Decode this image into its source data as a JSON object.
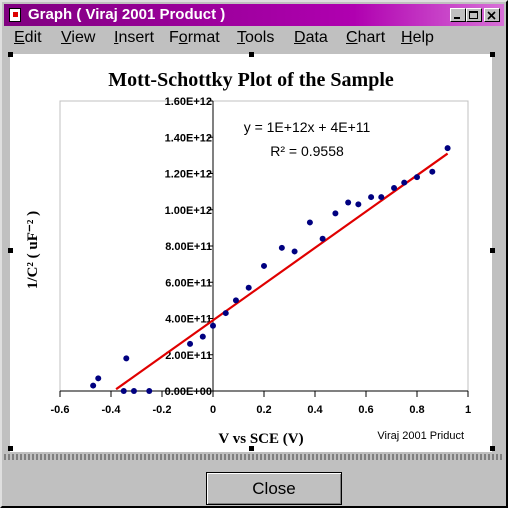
{
  "window": {
    "title": "Graph ( Viraj 2001 Product )",
    "title_gradient": [
      "#800080",
      "#d870d8"
    ]
  },
  "menu": [
    {
      "pre": "",
      "u": "E",
      "post": "dit"
    },
    {
      "pre": "",
      "u": "V",
      "post": "iew"
    },
    {
      "pre": "",
      "u": "I",
      "post": "nsert"
    },
    {
      "pre": "F",
      "u": "o",
      "post": "rmat"
    },
    {
      "pre": "",
      "u": "T",
      "post": "ools"
    },
    {
      "pre": "",
      "u": "D",
      "post": "ata"
    },
    {
      "pre": "",
      "u": "C",
      "post": "hart"
    },
    {
      "pre": "",
      "u": "H",
      "post": "elp"
    }
  ],
  "chart_data": {
    "type": "scatter",
    "title": "Mott-Schottky Plot of the Sample",
    "xlabel": "V vs SCE (V)",
    "ylabel": "1/C² ( uF⁻² )",
    "xlim": [
      -0.6,
      1.0
    ],
    "ylim": [
      0,
      1600000000000.0
    ],
    "x_ticks": [
      "-0.6",
      "-0.4",
      "-0.2",
      "0",
      "0.2",
      "0.4",
      "0.6",
      "0.8",
      "1"
    ],
    "y_ticks": [
      "0.00E+00",
      "2.00E+11",
      "4.00E+11",
      "6.00E+11",
      "8.00E+11",
      "1.00E+12",
      "1.20E+12",
      "1.40E+12",
      "1.60E+12"
    ],
    "equation": "y = 1E+12x + 4E+11",
    "r_squared": "R² = 0.9558",
    "watermark": "Viraj 2001 Priduct",
    "grid": false,
    "series": [
      {
        "marker_color": "#000080",
        "points": [
          [
            -0.47,
            30000000000.0
          ],
          [
            -0.45,
            70000000000.0
          ],
          [
            -0.35,
            0
          ],
          [
            -0.34,
            180000000000.0
          ],
          [
            -0.31,
            0
          ],
          [
            -0.25,
            0
          ],
          [
            -0.09,
            260000000000.0
          ],
          [
            -0.04,
            300000000000.0
          ],
          [
            0.0,
            360000000000.0
          ],
          [
            0.05,
            430000000000.0
          ],
          [
            0.09,
            500000000000.0
          ],
          [
            0.14,
            570000000000.0
          ],
          [
            0.2,
            690000000000.0
          ],
          [
            0.27,
            790000000000.0
          ],
          [
            0.32,
            770000000000.0
          ],
          [
            0.38,
            930000000000.0
          ],
          [
            0.43,
            840000000000.0
          ],
          [
            0.48,
            980000000000.0
          ],
          [
            0.53,
            1040000000000.0
          ],
          [
            0.57,
            1030000000000.0
          ],
          [
            0.62,
            1070000000000.0
          ],
          [
            0.66,
            1070000000000.0
          ],
          [
            0.71,
            1120000000000.0
          ],
          [
            0.75,
            1150000000000.0
          ],
          [
            0.8,
            1180000000000.0
          ],
          [
            0.86,
            1210000000000.0
          ],
          [
            0.92,
            1340000000000.0
          ]
        ]
      }
    ],
    "trendline": {
      "color": "#e00000",
      "slope": 1000000000000.0,
      "intercept": 390000000000.0,
      "x_range": [
        -0.38,
        0.92
      ]
    }
  },
  "buttons": {
    "close": "Close"
  }
}
